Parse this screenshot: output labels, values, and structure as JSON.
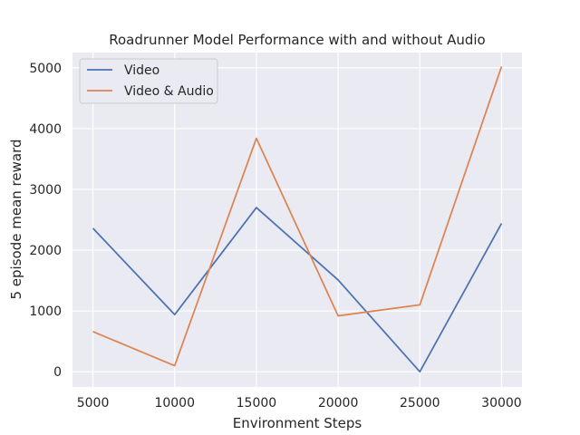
{
  "chart_data": {
    "type": "line",
    "title": "Roadrunner Model Performance with and without Audio",
    "xlabel": "Environment Steps",
    "ylabel": "5 episode mean reward",
    "x": [
      5000,
      10000,
      15000,
      20000,
      25000,
      30000
    ],
    "xlim": [
      3750,
      31250
    ],
    "ylim": [
      -250,
      5250
    ],
    "xticks": [
      "5000",
      "10000",
      "15000",
      "20000",
      "25000",
      "30000"
    ],
    "yticks": [
      "0",
      "1000",
      "2000",
      "3000",
      "4000",
      "5000"
    ],
    "grid": true,
    "legend_position": "upper-left",
    "series": [
      {
        "name": "Video",
        "color": "#4c72b0",
        "values": [
          2360,
          940,
          2700,
          1510,
          0,
          2440
        ]
      },
      {
        "name": "Video & Audio",
        "color": "#dd8452",
        "values": [
          660,
          100,
          3840,
          920,
          1100,
          5020
        ]
      }
    ],
    "background": "#eaeaf2",
    "grid_color": "#ffffff"
  }
}
